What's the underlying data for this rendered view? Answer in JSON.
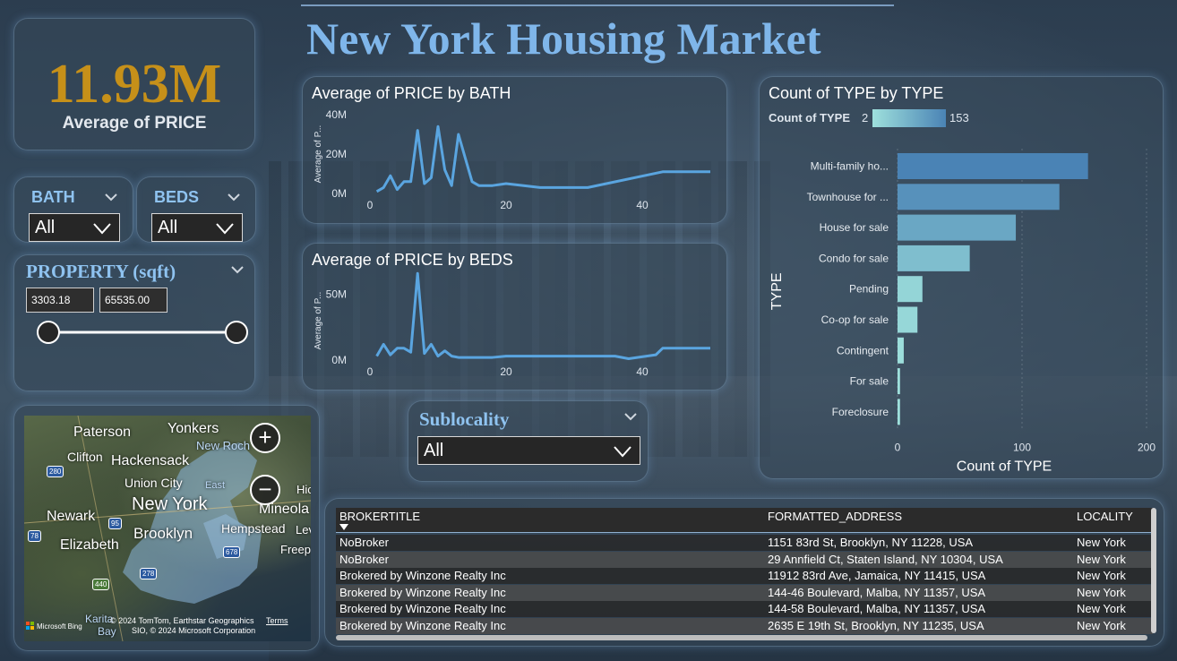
{
  "title": "New York Housing Market",
  "kpi": {
    "value": "11.93M",
    "label": "Average of PRICE"
  },
  "bath_slicer": {
    "title": "BATH",
    "selected": "All"
  },
  "beds_slicer": {
    "title": "BEDS",
    "selected": "All"
  },
  "property_slicer": {
    "title": "PROPERTY (sqft)",
    "min_value": "3303.18",
    "max_value": "65535.00"
  },
  "sublocality_slicer": {
    "title": "Sublocality",
    "selected": "All"
  },
  "map": {
    "labels": [
      "Paterson",
      "Yonkers",
      "New Roch",
      "Clifton",
      "Hackensack",
      "Union City",
      "New York",
      "East",
      "Hic",
      "Mineola",
      "Newark",
      "Hempstead",
      "Brooklyn",
      "Lev",
      "Elizabeth",
      "Freep",
      "Karita",
      "Bay"
    ],
    "shields": [
      "280",
      "95",
      "78",
      "278",
      "678",
      "440"
    ],
    "zoom_in": "+",
    "zoom_out": "−",
    "brand": "Microsoft Bing",
    "credit_line1": "© 2024 TomTom, Earthstar Geographics",
    "credit_line2": "SIO, © 2024 Microsoft Corporation",
    "terms": "Terms"
  },
  "table": {
    "columns": [
      "BROKERTITLE",
      "FORMATTED_ADDRESS",
      "LOCALITY"
    ],
    "rows": [
      [
        "NoBroker",
        "1151 83rd St, Brooklyn, NY 11228, USA",
        "New York"
      ],
      [
        "NoBroker",
        "29 Annfield Ct, Staten Island, NY 10304, USA",
        "New York"
      ],
      [
        "Brokered by Winzone Realty Inc",
        "11912 83rd Ave, Jamaica, NY 11415, USA",
        "New York"
      ],
      [
        "Brokered by Winzone Realty Inc",
        "144-46 Boulevard, Malba, NY 11357, USA",
        "New York"
      ],
      [
        "Brokered by Winzone Realty Inc",
        "144-58 Boulevard, Malba, NY 11357, USA",
        "New York"
      ],
      [
        "Brokered by Winzone Realty Inc",
        "2635 E 19th St, Brooklyn, NY 11235, USA",
        "New York"
      ]
    ]
  },
  "chart_data": [
    {
      "type": "line",
      "title": "Average of PRICE by BATH",
      "xlabel": "",
      "ylabel": "Average of P...",
      "xlim": [
        0,
        50
      ],
      "ylim": [
        0,
        40
      ],
      "xticks": [
        0,
        20,
        40
      ],
      "xtick_labels": [
        "0",
        "20",
        "40"
      ],
      "yticks": [
        0,
        20,
        40
      ],
      "ytick_labels": [
        "0M",
        "20M",
        "40M"
      ],
      "color": "#5aa5e0",
      "x": [
        1,
        2,
        3,
        4,
        5,
        6,
        7,
        8,
        9,
        10,
        11,
        12,
        13,
        14,
        15,
        16,
        17,
        18,
        20,
        25,
        32,
        43,
        50
      ],
      "y": [
        1,
        3,
        9,
        2,
        6,
        6,
        32,
        5,
        8,
        34,
        12,
        4,
        30,
        18,
        6,
        4,
        4,
        4,
        5,
        3,
        3,
        11,
        11
      ]
    },
    {
      "type": "line",
      "title": "Average of PRICE by BEDS",
      "xlabel": "",
      "ylabel": "Average of P...",
      "xlim": [
        0,
        50
      ],
      "ylim": [
        0,
        60
      ],
      "xticks": [
        0,
        20,
        40
      ],
      "xtick_labels": [
        "0",
        "20",
        "40"
      ],
      "yticks": [
        0,
        50
      ],
      "ytick_labels": [
        "0M",
        "50M"
      ],
      "color": "#5aa5e0",
      "x": [
        1,
        2,
        3,
        4,
        5,
        6,
        7,
        8,
        9,
        10,
        11,
        12,
        13,
        15,
        18,
        20,
        25,
        36,
        38,
        42,
        43,
        50
      ],
      "y": [
        3,
        12,
        4,
        9,
        9,
        6,
        66,
        5,
        12,
        3,
        7,
        3,
        2,
        2,
        2,
        3,
        3,
        3,
        1,
        4,
        9,
        9
      ]
    },
    {
      "type": "bar",
      "orientation": "horizontal",
      "title": "Count of TYPE by TYPE",
      "xlabel": "Count of TYPE",
      "ylabel": "TYPE",
      "xlim": [
        0,
        200
      ],
      "xticks": [
        0,
        100,
        200
      ],
      "xtick_labels": [
        "0",
        "100",
        "200"
      ],
      "legend": {
        "label": "Count of TYPE",
        "min": "2",
        "max": "153",
        "color_min": "#9ee0dc",
        "color_max": "#4a83b5"
      },
      "categories": [
        "Multi-family ho...",
        "Townhouse for ...",
        "House for sale",
        "Condo for sale",
        "Pending",
        "Co-op for sale",
        "Contingent",
        "For sale",
        "Foreclosure"
      ],
      "values": [
        153,
        130,
        95,
        58,
        20,
        16,
        5,
        2,
        2
      ]
    }
  ]
}
